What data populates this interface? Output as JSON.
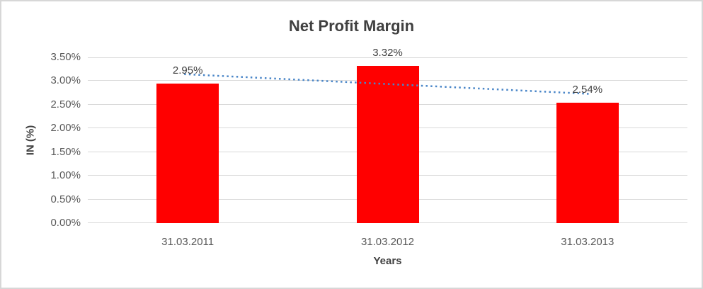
{
  "chart_data": {
    "type": "bar",
    "title": "Net Profit Margin",
    "xlabel": "Years",
    "ylabel": "IN (%)",
    "categories": [
      "31.03.2011",
      "31.03.2012",
      "31.03.2013"
    ],
    "values": [
      2.95,
      3.32,
      2.54
    ],
    "data_labels": [
      "2.95%",
      "3.32%",
      "2.54%"
    ],
    "ylim": [
      0,
      3.5
    ],
    "ytick_step": 0.5,
    "ytick_labels": [
      "0.00%",
      "0.50%",
      "1.00%",
      "1.50%",
      "2.00%",
      "2.50%",
      "3.00%",
      "3.50%"
    ],
    "grid": true,
    "legend": "none",
    "bar_color": "#ff0000",
    "trendline": {
      "type": "linear",
      "style": "dotted",
      "color": "#4a86c8"
    },
    "colors": {
      "title_text": "#404040",
      "tick_text": "#595959",
      "gridline": "#d9d9d9",
      "frame_border": "#d7d7d7",
      "background": "#ffffff"
    }
  }
}
